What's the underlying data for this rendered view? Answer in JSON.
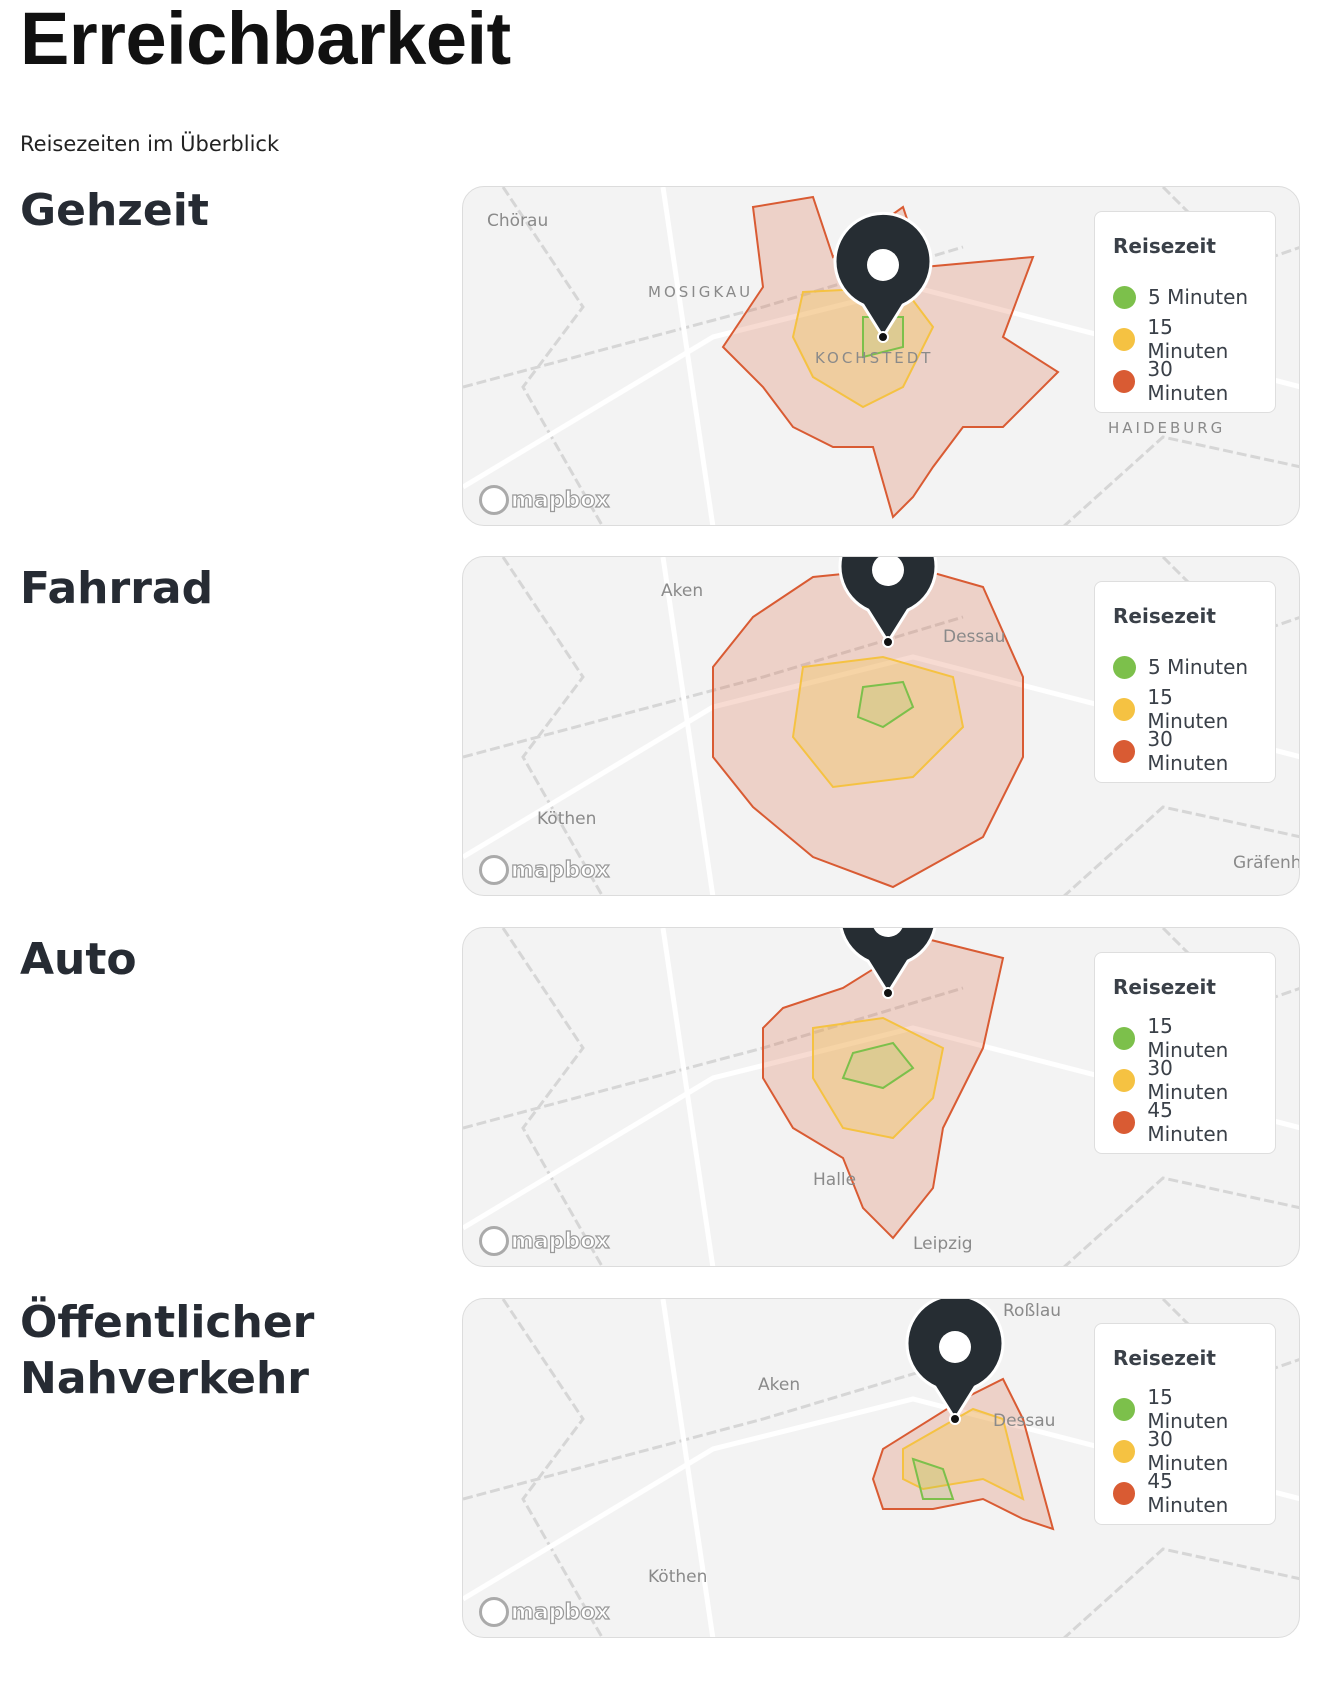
{
  "page": {
    "title": "Erreichbarkeit",
    "subtitle": "Reisezeiten im Überblick"
  },
  "colors": {
    "green": "#7cc04b",
    "yellow": "#f5c242",
    "red": "#d95b33",
    "pin": "#262d33"
  },
  "sections": [
    {
      "title": "Gehzeit",
      "legend_title": "Reisezeit",
      "legend": [
        "5 Minuten",
        "15 Minuten",
        "30 Minuten"
      ],
      "places": [
        "Chörau",
        "MOSIGKAU",
        "KOCHSTEDT",
        "HAIDEBURG"
      ],
      "attribution": "mapbox"
    },
    {
      "title": "Fahrrad",
      "legend_title": "Reisezeit",
      "legend": [
        "5 Minuten",
        "15 Minuten",
        "30 Minuten"
      ],
      "places": [
        "Aken",
        "Dessau",
        "Köthen",
        "Gräfenh"
      ],
      "attribution": "mapbox"
    },
    {
      "title": "Auto",
      "legend_title": "Reisezeit",
      "legend": [
        "15 Minuten",
        "30 Minuten",
        "45 Minuten"
      ],
      "places": [
        "Halle",
        "Leipzig"
      ],
      "attribution": "mapbox"
    },
    {
      "title": "Öffentlicher Nahverkehr",
      "legend_title": "Reisezeit",
      "legend": [
        "15 Minuten",
        "30 Minuten",
        "45 Minuten"
      ],
      "places": [
        "Roßlau",
        "Aken",
        "Dessau",
        "Köthen"
      ],
      "attribution": "mapbox"
    }
  ]
}
